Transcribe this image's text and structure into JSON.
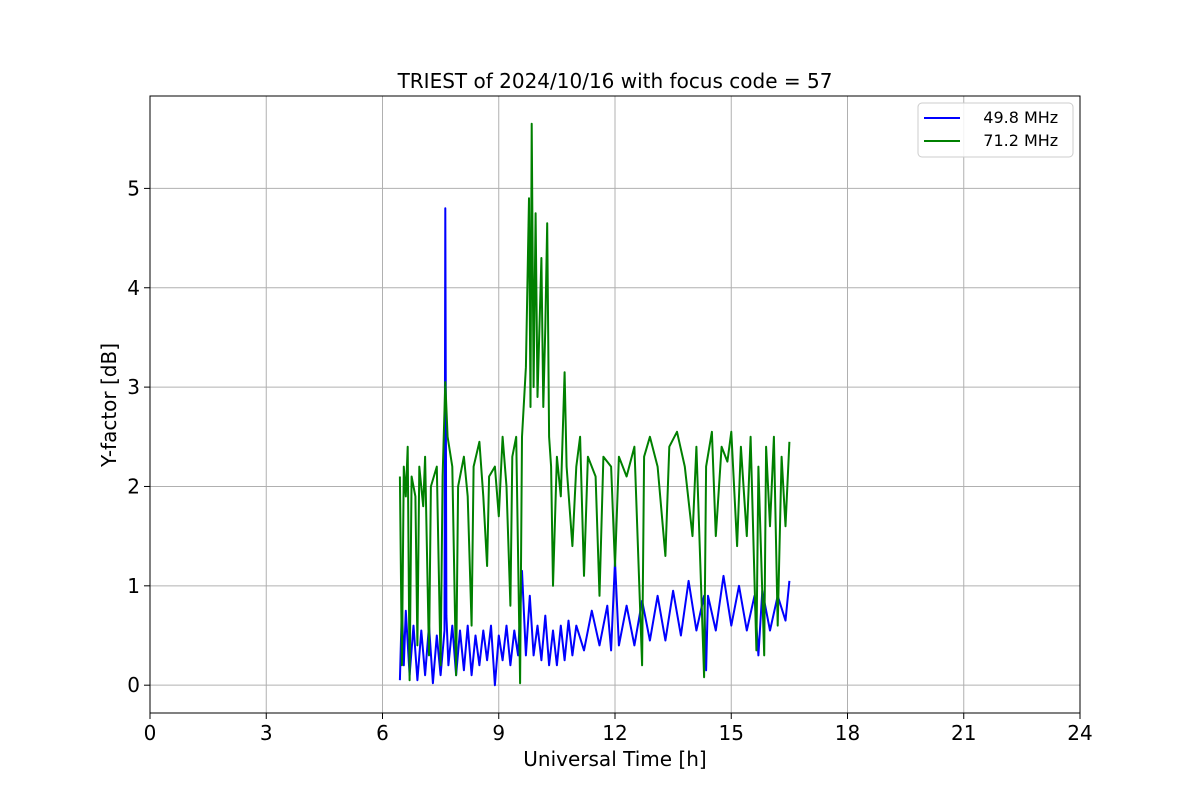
{
  "chart_data": {
    "type": "line",
    "title": "TRIEST of 2024/10/16 with focus code = 57",
    "xlabel": "Universal Time [h]",
    "ylabel": "Y-factor [dB]",
    "xlim": [
      0,
      24
    ],
    "ylim": [
      -0.28,
      5.93
    ],
    "xticks": [
      0,
      3,
      6,
      9,
      12,
      15,
      18,
      21,
      24
    ],
    "yticks": [
      0,
      1,
      2,
      3,
      4,
      5
    ],
    "grid": true,
    "legend_position": "top-right",
    "series": [
      {
        "name": "   49.8 MHz",
        "color": "#0000ff",
        "points": [
          [
            6.45,
            0.05
          ],
          [
            6.5,
            0.8
          ],
          [
            6.55,
            0.2
          ],
          [
            6.6,
            0.75
          ],
          [
            6.7,
            0.1
          ],
          [
            6.8,
            0.6
          ],
          [
            6.9,
            0.05
          ],
          [
            7.0,
            0.55
          ],
          [
            7.1,
            0.1
          ],
          [
            7.2,
            0.6
          ],
          [
            7.3,
            0.02
          ],
          [
            7.4,
            0.5
          ],
          [
            7.5,
            0.1
          ],
          [
            7.6,
            0.55
          ],
          [
            7.62,
            4.8
          ],
          [
            7.65,
            0.7
          ],
          [
            7.7,
            0.2
          ],
          [
            7.8,
            0.6
          ],
          [
            7.9,
            0.1
          ],
          [
            8.0,
            0.55
          ],
          [
            8.1,
            0.15
          ],
          [
            8.2,
            0.6
          ],
          [
            8.3,
            0.1
          ],
          [
            8.4,
            0.5
          ],
          [
            8.5,
            0.2
          ],
          [
            8.6,
            0.55
          ],
          [
            8.7,
            0.25
          ],
          [
            8.8,
            0.6
          ],
          [
            8.9,
            0.0
          ],
          [
            9.0,
            0.5
          ],
          [
            9.1,
            0.25
          ],
          [
            9.2,
            0.6
          ],
          [
            9.3,
            0.2
          ],
          [
            9.4,
            0.55
          ],
          [
            9.5,
            0.3
          ],
          [
            9.6,
            1.15
          ],
          [
            9.7,
            0.3
          ],
          [
            9.8,
            0.9
          ],
          [
            9.9,
            0.3
          ],
          [
            10.0,
            0.6
          ],
          [
            10.1,
            0.25
          ],
          [
            10.2,
            0.7
          ],
          [
            10.3,
            0.2
          ],
          [
            10.4,
            0.55
          ],
          [
            10.5,
            0.2
          ],
          [
            10.6,
            0.6
          ],
          [
            10.7,
            0.25
          ],
          [
            10.8,
            0.65
          ],
          [
            10.9,
            0.3
          ],
          [
            11.0,
            0.6
          ],
          [
            11.2,
            0.35
          ],
          [
            11.4,
            0.75
          ],
          [
            11.6,
            0.4
          ],
          [
            11.8,
            0.8
          ],
          [
            11.9,
            0.35
          ],
          [
            12.0,
            1.25
          ],
          [
            12.1,
            0.4
          ],
          [
            12.3,
            0.8
          ],
          [
            12.5,
            0.4
          ],
          [
            12.7,
            0.85
          ],
          [
            12.9,
            0.45
          ],
          [
            13.1,
            0.9
          ],
          [
            13.3,
            0.45
          ],
          [
            13.5,
            0.95
          ],
          [
            13.7,
            0.5
          ],
          [
            13.9,
            1.05
          ],
          [
            14.1,
            0.55
          ],
          [
            14.3,
            0.9
          ],
          [
            14.35,
            0.15
          ],
          [
            14.4,
            0.9
          ],
          [
            14.6,
            0.55
          ],
          [
            14.8,
            1.1
          ],
          [
            15.0,
            0.6
          ],
          [
            15.2,
            1.0
          ],
          [
            15.4,
            0.55
          ],
          [
            15.6,
            0.9
          ],
          [
            15.7,
            0.3
          ],
          [
            15.8,
            0.95
          ],
          [
            16.0,
            0.55
          ],
          [
            16.2,
            0.9
          ],
          [
            16.4,
            0.65
          ],
          [
            16.5,
            1.05
          ]
        ]
      },
      {
        "name": "   71.2 MHz",
        "color": "#008000",
        "points": [
          [
            6.45,
            2.1
          ],
          [
            6.5,
            0.2
          ],
          [
            6.55,
            2.2
          ],
          [
            6.6,
            1.9
          ],
          [
            6.65,
            2.4
          ],
          [
            6.7,
            0.05
          ],
          [
            6.75,
            2.1
          ],
          [
            6.85,
            1.9
          ],
          [
            6.9,
            0.4
          ],
          [
            6.95,
            2.2
          ],
          [
            7.05,
            1.8
          ],
          [
            7.1,
            2.3
          ],
          [
            7.2,
            0.3
          ],
          [
            7.25,
            2.0
          ],
          [
            7.4,
            2.2
          ],
          [
            7.5,
            0.2
          ],
          [
            7.55,
            2.1
          ],
          [
            7.62,
            3.05
          ],
          [
            7.68,
            2.5
          ],
          [
            7.8,
            2.2
          ],
          [
            7.9,
            0.1
          ],
          [
            7.95,
            2.0
          ],
          [
            8.1,
            2.3
          ],
          [
            8.2,
            1.9
          ],
          [
            8.3,
            0.6
          ],
          [
            8.35,
            2.2
          ],
          [
            8.5,
            2.45
          ],
          [
            8.6,
            1.9
          ],
          [
            8.7,
            1.2
          ],
          [
            8.75,
            2.1
          ],
          [
            8.9,
            2.2
          ],
          [
            9.0,
            1.7
          ],
          [
            9.1,
            2.5
          ],
          [
            9.2,
            2.0
          ],
          [
            9.3,
            0.8
          ],
          [
            9.35,
            2.3
          ],
          [
            9.45,
            2.5
          ],
          [
            9.55,
            0.02
          ],
          [
            9.6,
            2.5
          ],
          [
            9.7,
            3.2
          ],
          [
            9.78,
            4.9
          ],
          [
            9.82,
            2.8
          ],
          [
            9.85,
            5.65
          ],
          [
            9.9,
            3.0
          ],
          [
            9.95,
            4.75
          ],
          [
            10.0,
            2.9
          ],
          [
            10.1,
            4.3
          ],
          [
            10.15,
            2.8
          ],
          [
            10.2,
            3.6
          ],
          [
            10.25,
            4.65
          ],
          [
            10.3,
            2.5
          ],
          [
            10.35,
            2.2
          ],
          [
            10.4,
            1.0
          ],
          [
            10.5,
            2.3
          ],
          [
            10.6,
            1.9
          ],
          [
            10.7,
            3.15
          ],
          [
            10.75,
            2.2
          ],
          [
            10.9,
            1.4
          ],
          [
            11.0,
            2.2
          ],
          [
            11.1,
            2.5
          ],
          [
            11.2,
            1.1
          ],
          [
            11.3,
            2.3
          ],
          [
            11.5,
            2.1
          ],
          [
            11.6,
            0.9
          ],
          [
            11.7,
            2.3
          ],
          [
            11.9,
            2.2
          ],
          [
            12.0,
            1.2
          ],
          [
            12.1,
            2.3
          ],
          [
            12.3,
            2.1
          ],
          [
            12.5,
            2.4
          ],
          [
            12.7,
            0.2
          ],
          [
            12.75,
            2.3
          ],
          [
            12.9,
            2.5
          ],
          [
            13.1,
            2.2
          ],
          [
            13.3,
            1.3
          ],
          [
            13.4,
            2.4
          ],
          [
            13.6,
            2.55
          ],
          [
            13.8,
            2.2
          ],
          [
            14.0,
            1.5
          ],
          [
            14.1,
            2.4
          ],
          [
            14.3,
            0.08
          ],
          [
            14.35,
            2.2
          ],
          [
            14.5,
            2.55
          ],
          [
            14.6,
            1.5
          ],
          [
            14.75,
            2.4
          ],
          [
            14.9,
            2.25
          ],
          [
            15.0,
            2.55
          ],
          [
            15.15,
            1.4
          ],
          [
            15.25,
            2.4
          ],
          [
            15.4,
            1.5
          ],
          [
            15.5,
            2.5
          ],
          [
            15.65,
            0.35
          ],
          [
            15.7,
            2.2
          ],
          [
            15.85,
            0.3
          ],
          [
            15.9,
            2.4
          ],
          [
            16.0,
            1.6
          ],
          [
            16.1,
            2.5
          ],
          [
            16.2,
            0.6
          ],
          [
            16.3,
            2.3
          ],
          [
            16.4,
            1.6
          ],
          [
            16.5,
            2.45
          ]
        ]
      }
    ]
  }
}
